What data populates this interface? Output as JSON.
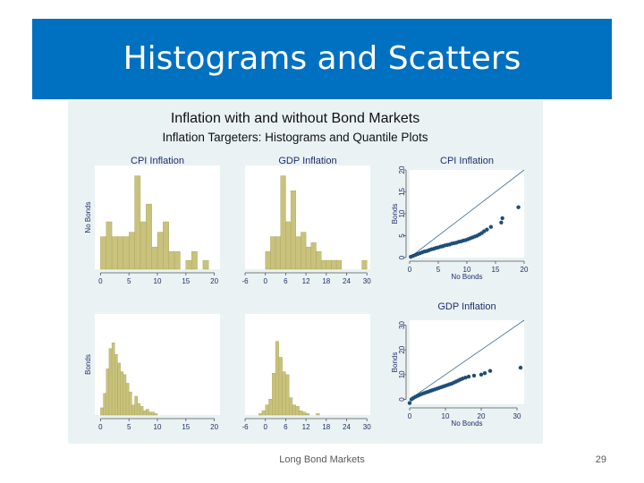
{
  "slide": {
    "title": "Histograms and Scatters",
    "footer": "Long Bond Markets",
    "page_number": "29"
  },
  "colors": {
    "title_bar": "#0070c0",
    "figure_background": "#eaf2f3",
    "bar_fill": "#c8c27c",
    "bar_stroke": "#a9a35a",
    "point_color": "#1f4e79",
    "line_color": "#3c6f8f"
  },
  "figure": {
    "title": "Inflation with and without Bond Markets",
    "subtitle": "Inflation Targeters: Histograms and Quantile Plots"
  },
  "chart_data": [
    {
      "type": "bar",
      "panel": "hist-cpi-nobonds",
      "title": "CPI Inflation",
      "ylabel": "No Bonds",
      "xlim": [
        -1,
        21
      ],
      "xticks": [
        0,
        5,
        10,
        15,
        20
      ],
      "bin_width": 1,
      "bins_left": [
        0,
        1,
        2,
        3,
        4,
        5,
        6,
        7,
        8,
        9,
        10,
        11,
        12,
        13,
        14,
        15,
        16,
        17,
        18,
        19
      ],
      "values": [
        2.2,
        3.2,
        2.2,
        2.2,
        2.2,
        2.5,
        6.3,
        3.2,
        4.4,
        1.5,
        2.5,
        3.2,
        1.2,
        1.2,
        0,
        0.6,
        1.2,
        0,
        0.6,
        0
      ],
      "ylim": [
        0,
        7
      ]
    },
    {
      "type": "bar",
      "panel": "hist-gdp-nobonds",
      "title": "GDP Inflation",
      "xlim": [
        -6,
        31
      ],
      "xticks": [
        -6,
        0,
        6,
        12,
        18,
        24,
        30
      ],
      "bin_width": 1.5,
      "bins_left": [
        0,
        1.5,
        3,
        4.5,
        6,
        7.5,
        9,
        10.5,
        12,
        13.5,
        15,
        16.5,
        18,
        19.5,
        21,
        22.5,
        24,
        25.5,
        27,
        28.5
      ],
      "values": [
        1.2,
        2.2,
        2.2,
        6.3,
        3.2,
        5.3,
        2.2,
        2.5,
        1.5,
        1.8,
        1.2,
        0.6,
        0.6,
        0.6,
        0.6,
        0,
        0,
        0,
        0,
        0.6
      ],
      "ylim": [
        0,
        7
      ]
    },
    {
      "type": "bar",
      "panel": "hist-cpi-bonds",
      "ylabel": "Bonds",
      "xlim": [
        -1,
        21
      ],
      "xticks": [
        0,
        5,
        10,
        15,
        20
      ],
      "bin_width": 0.5,
      "bins_left": [
        0,
        0.5,
        1,
        1.5,
        2,
        2.5,
        3,
        3.5,
        4,
        4.5,
        5,
        5.5,
        6,
        6.5,
        7,
        7.5,
        8,
        8.5,
        9,
        9.5
      ],
      "values": [
        0.5,
        1.5,
        3.2,
        4.6,
        5.0,
        4.2,
        3.6,
        3.0,
        2.8,
        2.2,
        1.6,
        0.7,
        1.3,
        0.8,
        0.6,
        0.3,
        0.4,
        0.2,
        0.2,
        0.1
      ],
      "ylim": [
        0,
        7
      ]
    },
    {
      "type": "bar",
      "panel": "hist-gdp-bonds",
      "xlim": [
        -6,
        31
      ],
      "xticks": [
        -6,
        0,
        6,
        12,
        18,
        24,
        30
      ],
      "bin_width": 1,
      "bins_left": [
        -2,
        -1,
        0,
        1,
        2,
        3,
        4,
        5,
        6,
        7,
        8,
        9,
        10,
        11,
        12,
        13,
        14,
        15
      ],
      "values": [
        0.1,
        0.3,
        0.7,
        1.1,
        2.9,
        5.1,
        4.0,
        3.0,
        2.8,
        1.2,
        0.7,
        0.6,
        0.3,
        0.2,
        0.1,
        0,
        0,
        0.1
      ],
      "ylim": [
        0,
        7
      ]
    },
    {
      "type": "scatter",
      "panel": "qq-cpi",
      "title": "CPI Inflation",
      "xlabel": "No Bonds",
      "ylabel": "Bonds",
      "xlim": [
        0,
        20
      ],
      "ylim": [
        0,
        20
      ],
      "xticks": [
        0,
        5,
        10,
        15,
        20
      ],
      "yticks": [
        0,
        5,
        10,
        15,
        20
      ],
      "x": [
        0.2,
        0.6,
        1,
        1.4,
        1.8,
        2.2,
        2.6,
        3,
        3.4,
        3.8,
        4.2,
        4.6,
        5,
        5.4,
        5.8,
        6.2,
        6.6,
        7,
        7.4,
        7.8,
        8.2,
        8.6,
        9,
        9.4,
        9.8,
        10.2,
        10.6,
        11,
        11.4,
        11.8,
        12.2,
        12.6,
        13,
        13.5,
        14.2,
        16,
        16.2,
        19
      ],
      "y": [
        0.2,
        0.4,
        0.6,
        0.8,
        1,
        1.2,
        1.4,
        1.5,
        1.7,
        1.9,
        2,
        2.2,
        2.3,
        2.5,
        2.6,
        2.8,
        2.9,
        3,
        3.2,
        3.3,
        3.4,
        3.6,
        3.7,
        3.9,
        4,
        4.2,
        4.4,
        4.6,
        4.8,
        5,
        5.3,
        5.6,
        6,
        6.4,
        7,
        8,
        9,
        11.5
      ],
      "reference_line": "45-degree"
    },
    {
      "type": "scatter",
      "panel": "qq-gdp",
      "title": "GDP Inflation",
      "xlabel": "No Bonds",
      "ylabel": "Bonds",
      "xlim": [
        0,
        32
      ],
      "ylim": [
        -2,
        32
      ],
      "xticks": [
        0,
        10,
        20,
        30
      ],
      "yticks": [
        0,
        10,
        20,
        30
      ],
      "x": [
        0,
        0.5,
        1,
        1.6,
        2.2,
        2.8,
        3.4,
        4,
        4.6,
        5.2,
        5.8,
        6.4,
        7,
        7.6,
        8.2,
        8.8,
        9.4,
        10,
        10.6,
        11.2,
        11.8,
        12.4,
        13,
        13.6,
        14.2,
        14.8,
        15.6,
        16.5,
        18,
        20,
        21,
        22.5,
        31
      ],
      "y": [
        -1.5,
        0,
        0.5,
        1,
        1.4,
        1.8,
        2.2,
        2.5,
        2.8,
        3.1,
        3.4,
        3.7,
        4,
        4.3,
        4.6,
        4.9,
        5.2,
        5.5,
        5.8,
        6.1,
        6.4,
        6.8,
        7.2,
        7.6,
        8,
        8.4,
        8.8,
        9.2,
        9.6,
        10,
        10.6,
        11.5,
        12.8
      ],
      "reference_line": "45-degree"
    }
  ]
}
